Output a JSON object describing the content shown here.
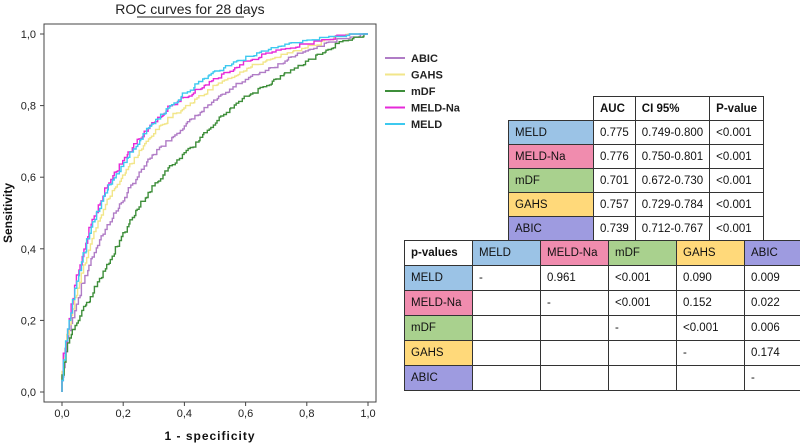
{
  "chart_data": {
    "type": "line",
    "title": "ROC curves for 28 days",
    "xlabel": "1 - specificity",
    "ylabel": "Sensitivity",
    "xlim": [
      0,
      1
    ],
    "ylim": [
      0,
      1
    ],
    "xticks": [
      "0,0",
      "0,2",
      "0,4",
      "0,6",
      "0,8",
      "1,0"
    ],
    "yticks": [
      "0,0",
      "0,2",
      "0,4",
      "0,6",
      "0,8",
      "1,0"
    ],
    "legend_position": "top-right",
    "series": [
      {
        "name": "ABIC",
        "color": "#b07cc6",
        "x": [
          0,
          0.02,
          0.05,
          0.1,
          0.15,
          0.2,
          0.25,
          0.3,
          0.35,
          0.4,
          0.5,
          0.6,
          0.7,
          0.8,
          0.9,
          1.0
        ],
        "y": [
          0,
          0.14,
          0.24,
          0.37,
          0.46,
          0.53,
          0.6,
          0.66,
          0.7,
          0.74,
          0.81,
          0.87,
          0.91,
          0.95,
          0.98,
          1.0
        ]
      },
      {
        "name": "GAHS",
        "color": "#f2e68a",
        "x": [
          0,
          0.02,
          0.05,
          0.1,
          0.15,
          0.2,
          0.25,
          0.3,
          0.35,
          0.4,
          0.5,
          0.6,
          0.7,
          0.8,
          0.9,
          1.0
        ],
        "y": [
          0,
          0.15,
          0.27,
          0.42,
          0.53,
          0.6,
          0.66,
          0.72,
          0.76,
          0.79,
          0.85,
          0.9,
          0.93,
          0.96,
          0.99,
          1.0
        ]
      },
      {
        "name": "mDF",
        "color": "#3e8e3a",
        "x": [
          0,
          0.02,
          0.05,
          0.1,
          0.15,
          0.2,
          0.25,
          0.3,
          0.35,
          0.4,
          0.45,
          0.5,
          0.6,
          0.7,
          0.8,
          0.9,
          1.0
        ],
        "y": [
          0,
          0.13,
          0.19,
          0.27,
          0.35,
          0.43,
          0.51,
          0.57,
          0.62,
          0.66,
          0.7,
          0.75,
          0.82,
          0.87,
          0.92,
          0.97,
          1.0
        ]
      },
      {
        "name": "MELD-Na",
        "color": "#e62ad8",
        "x": [
          0,
          0.02,
          0.05,
          0.1,
          0.15,
          0.2,
          0.25,
          0.3,
          0.35,
          0.4,
          0.5,
          0.6,
          0.7,
          0.8,
          0.9,
          1.0
        ],
        "y": [
          0,
          0.16,
          0.31,
          0.47,
          0.57,
          0.64,
          0.7,
          0.75,
          0.79,
          0.82,
          0.87,
          0.92,
          0.95,
          0.97,
          0.99,
          1.0
        ]
      },
      {
        "name": "MELD",
        "color": "#3dc9ef",
        "x": [
          0,
          0.02,
          0.05,
          0.1,
          0.15,
          0.2,
          0.25,
          0.3,
          0.35,
          0.4,
          0.5,
          0.6,
          0.7,
          0.8,
          0.9,
          1.0
        ],
        "y": [
          0,
          0.16,
          0.3,
          0.46,
          0.56,
          0.63,
          0.69,
          0.75,
          0.79,
          0.83,
          0.89,
          0.93,
          0.96,
          0.98,
          0.99,
          1.0
        ]
      }
    ]
  },
  "auc_table": {
    "headers": [
      "",
      "AUC",
      "CI 95%",
      "P-value"
    ],
    "rows": [
      {
        "label": "MELD",
        "color": "#9bc3e6",
        "auc": "0.775",
        "ci": "0.749-0.800",
        "p": "<0.001"
      },
      {
        "label": "MELD-Na",
        "color": "#f08cae",
        "auc": "0.776",
        "ci": "0.750-0.801",
        "p": "<0.001"
      },
      {
        "label": "mDF",
        "color": "#a9d18e",
        "auc": "0.701",
        "ci": "0.672-0.730",
        "p": "<0.001"
      },
      {
        "label": "GAHS",
        "color": "#ffd97a",
        "auc": "0.757",
        "ci": "0.729-0.784",
        "p": "<0.001"
      },
      {
        "label": "ABIC",
        "color": "#9e9be0",
        "auc": "0.739",
        "ci": "0.712-0.767",
        "p": "<0.001"
      }
    ]
  },
  "p_table": {
    "corner": "p-values",
    "columns": [
      {
        "label": "MELD",
        "color": "#9bc3e6"
      },
      {
        "label": "MELD-Na",
        "color": "#f08cae"
      },
      {
        "label": "mDF",
        "color": "#a9d18e"
      },
      {
        "label": "GAHS",
        "color": "#ffd97a"
      },
      {
        "label": "ABIC",
        "color": "#9e9be0"
      }
    ],
    "rows": [
      {
        "label": "MELD",
        "color": "#9bc3e6",
        "cells": [
          "-",
          "0.961",
          "<0.001",
          "0.090",
          "0.009"
        ]
      },
      {
        "label": "MELD-Na",
        "color": "#f08cae",
        "cells": [
          "",
          "-",
          "<0.001",
          "0.152",
          "0.022"
        ]
      },
      {
        "label": "mDF",
        "color": "#a9d18e",
        "cells": [
          "",
          "",
          "-",
          "<0.001",
          "0.006"
        ]
      },
      {
        "label": "GAHS",
        "color": "#ffd97a",
        "cells": [
          "",
          "",
          "",
          "-",
          "0.174"
        ]
      },
      {
        "label": "ABIC",
        "color": "#9e9be0",
        "cells": [
          "",
          "",
          "",
          "",
          "-"
        ]
      }
    ]
  }
}
